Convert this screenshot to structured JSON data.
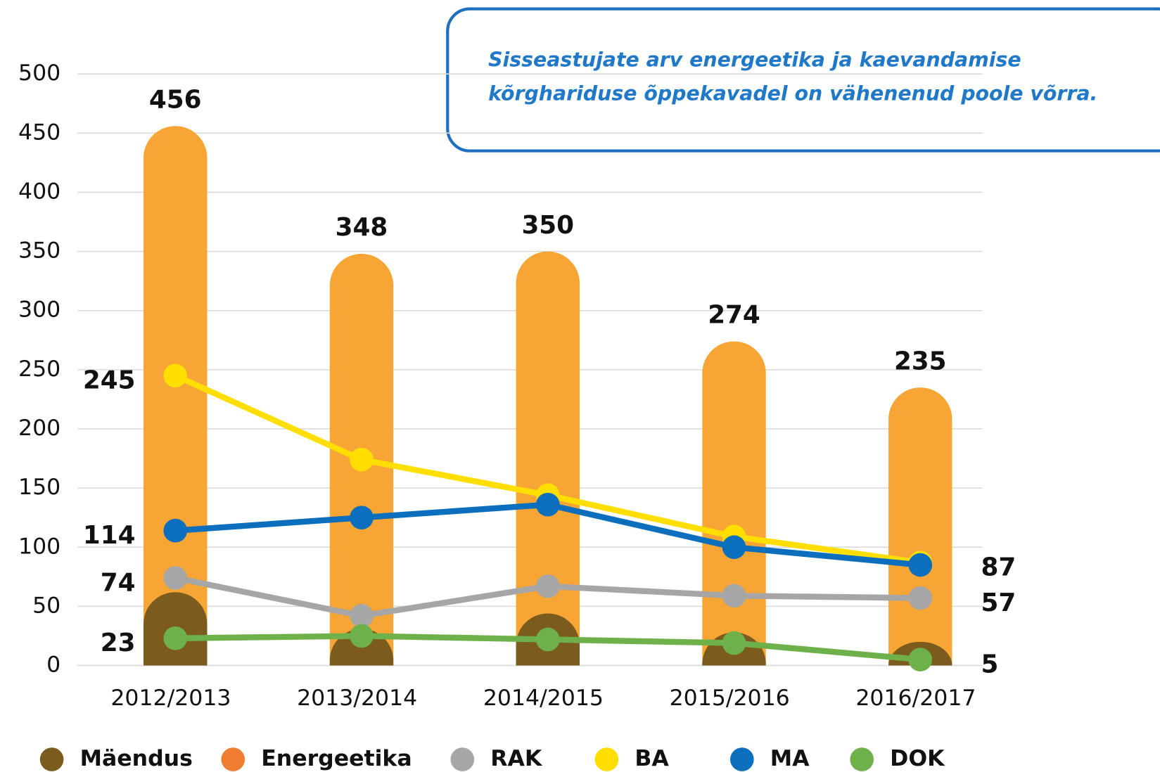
{
  "chart_data": {
    "type": "bar_line",
    "annotation": [
      "Sisseastujate arv energeetika ja kaevandamise",
      "kõrghariduse õppekavadel on vähenenud poole võrra."
    ],
    "categories": [
      "2012/2013",
      "2013/2014",
      "2014/2015",
      "2015/2016",
      "2016/2017"
    ],
    "ylim": [
      0,
      500
    ],
    "yticks": [
      0,
      50,
      100,
      150,
      200,
      250,
      300,
      350,
      400,
      450,
      500
    ],
    "grid": true,
    "series": [
      {
        "name": "Mäendus",
        "kind": "bar",
        "color": "#7b5b1e",
        "values": [
          62,
          31,
          44,
          28,
          20
        ]
      },
      {
        "name": "Energeetika",
        "kind": "bar",
        "color": "#f7a535",
        "legend_color": "#ef7e32",
        "values": [
          456,
          348,
          350,
          274,
          235
        ],
        "label_points": [
          0,
          1,
          2,
          3,
          4
        ]
      },
      {
        "name": "RAK",
        "kind": "line",
        "color": "#a6a6a6",
        "values": [
          74,
          42,
          67,
          59,
          57
        ],
        "label_points": [
          0,
          4
        ]
      },
      {
        "name": "BA",
        "kind": "line",
        "color": "#ffde00",
        "values": [
          245,
          174,
          144,
          109,
          87
        ],
        "label_points": [
          0,
          4
        ]
      },
      {
        "name": "MA",
        "kind": "line",
        "color": "#0b6fbd",
        "values": [
          114,
          125,
          136,
          100,
          85
        ],
        "label_points": [
          0
        ]
      },
      {
        "name": "DOK",
        "kind": "line",
        "color": "#6eb14a",
        "values": [
          23,
          25,
          22,
          19,
          5
        ],
        "label_points": [
          0,
          4
        ]
      }
    ],
    "legend": "bottom"
  }
}
